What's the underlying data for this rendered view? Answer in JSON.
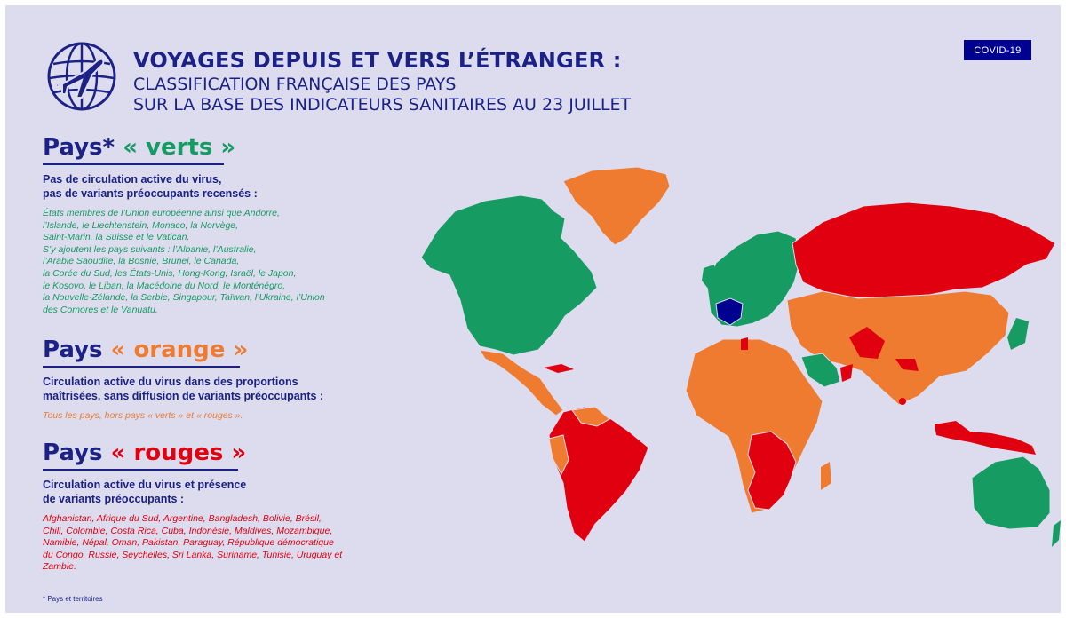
{
  "header": {
    "title": "VOYAGES DEPUIS ET VERS L’ÉTRANGER :",
    "subtitle_lines": [
      "CLASSIFICATION FRANÇAISE DES PAYS",
      "SUR LA BASE DES INDICATEURS SANITAIRES AU 23 JUILLET"
    ],
    "badge": "COVID-19",
    "logo_icon": "globe-airplane-icon"
  },
  "sections": {
    "green": {
      "heading_prefix": "Pays*",
      "heading_quote": "« verts »",
      "color": "#169b62",
      "desc_lines": [
        "Pas de circulation active du virus,",
        "pas de variants préoccupants recensés :"
      ],
      "list_lines": [
        "États membres de l’Union européenne ainsi que Andorre,",
        "l’Islande, le Liechtenstein, Monaco, la Norvège,",
        "Saint-Marin, la Suisse et le Vatican.",
        "S’y ajoutent les pays suivants : l’Albanie, l’Australie,",
        "l’Arabie Saoudite, la Bosnie, Brunei, le Canada,",
        "la Corée du Sud, les États-Unis, Hong-Kong, Israël, le Japon,",
        "le Kosovo, le Liban, la Macédoine du Nord, le Monténégro,",
        "la Nouvelle-Zélande, la Serbie, Singapour, Taïwan, l’Ukraine, l’Union",
        "des Comores et le Vanuatu."
      ]
    },
    "orange": {
      "heading_prefix": "Pays",
      "heading_quote": "« orange »",
      "color": "#ee7b30",
      "desc_lines": [
        "Circulation active du virus dans des proportions",
        "maîtrisées, sans diffusion de variants préoccupants :"
      ],
      "list_lines": [
        "Tous les pays, hors pays « verts » et « rouges »."
      ]
    },
    "red": {
      "heading_prefix": "Pays",
      "heading_quote": "« rouges »",
      "color": "#e1000f",
      "desc_lines": [
        "Circulation active du virus et présence",
        "de variants préoccupants :"
      ],
      "list_lines": [
        "Afghanistan, Afrique du Sud, Argentine, Bangladesh, Bolivie, Brésil,",
        "Chili, Colombie, Costa Rica, Cuba, Indonésie, Maldives, Mozambique,",
        "Namibie, Népal, Oman, Pakistan, Paraguay, République démocratique",
        "du Congo, Russie, Seychelles, Sri Lanka, Suriname, Tunisie, Uruguay et",
        "Zambie."
      ]
    }
  },
  "footnote": "* Pays et territoires",
  "map": {
    "france_color": "#000091",
    "ocean_color": "#dcdcee"
  }
}
